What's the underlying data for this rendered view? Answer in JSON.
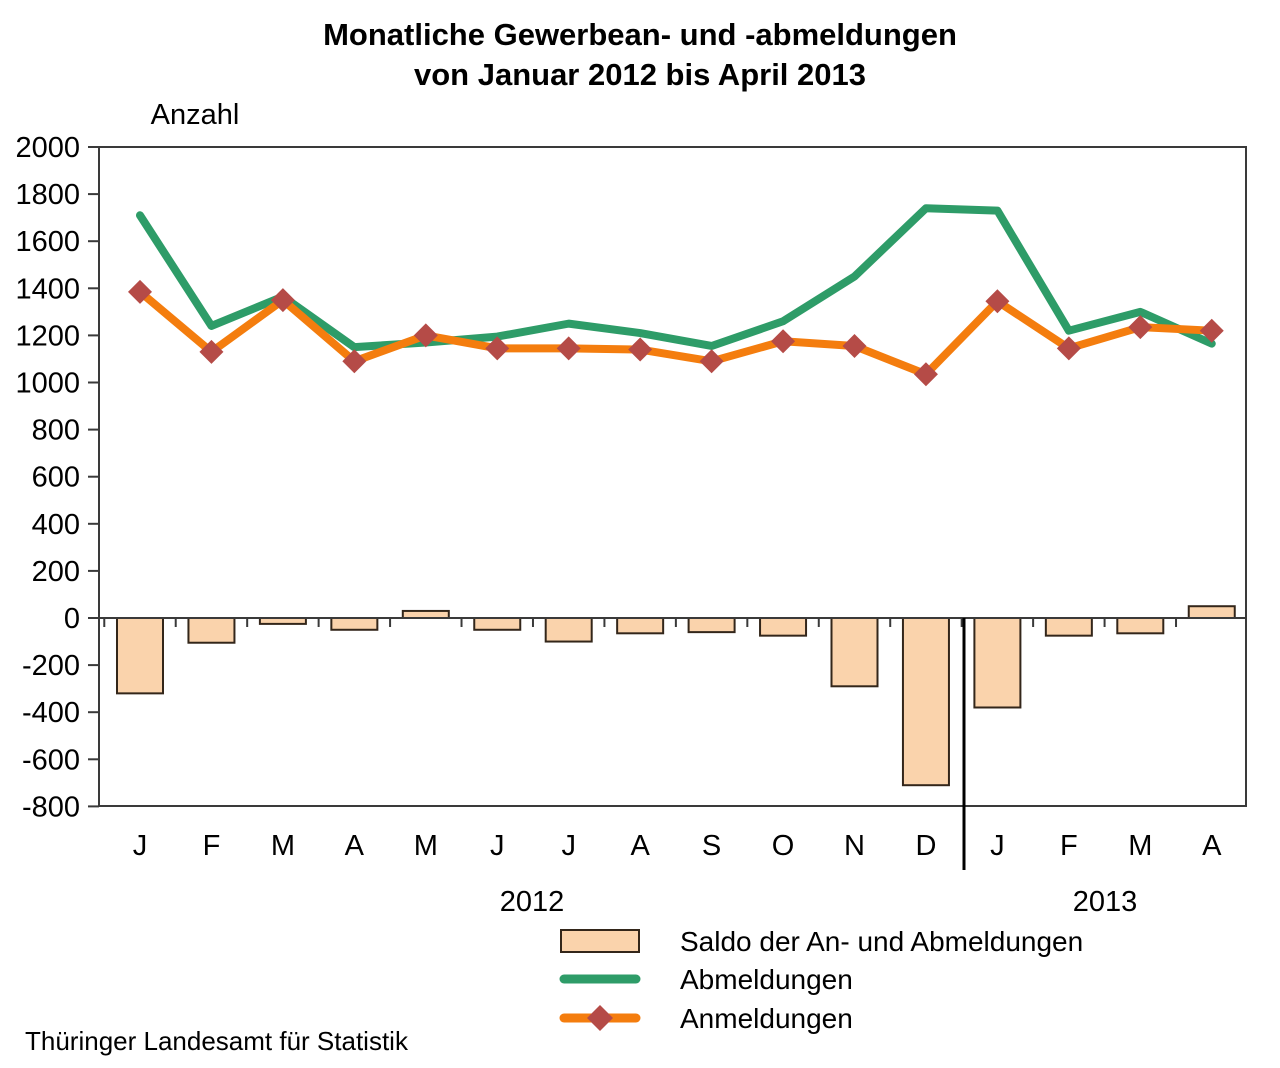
{
  "title": {
    "line1": "Monatliche Gewerbean- und -abmeldungen",
    "line2": "von Januar 2012 bis April 2013"
  },
  "footer": {
    "source": "Thüringer Landesamt für Statistik"
  },
  "colors": {
    "abmeldungen_line": "#2E9C68",
    "anmeldungen_line": "#F47D0E",
    "anmeldungen_marker": "#B54B47",
    "saldo_fill": "#FAD3AC",
    "saldo_border": "#33261A",
    "axis": "#3A3A3A",
    "separator": "#000000",
    "text": "#000000"
  },
  "chart_data": {
    "type": "combo-bar-line",
    "title": "Monatliche Gewerbean- und -abmeldungen von Januar 2012 bis April 2013",
    "xlabel": "",
    "ylabel": "Anzahl",
    "ylim": [
      -800,
      2000
    ],
    "ytick_step": 200,
    "yticks": [
      2000,
      1800,
      1600,
      1400,
      1200,
      1000,
      800,
      600,
      400,
      200,
      0,
      -200,
      -400,
      -600,
      -800
    ],
    "categories": [
      "J",
      "F",
      "M",
      "A",
      "M",
      "J",
      "J",
      "A",
      "S",
      "O",
      "N",
      "D",
      "J",
      "F",
      "M",
      "A"
    ],
    "year_groups": [
      {
        "label": "2012",
        "months": 12
      },
      {
        "label": "2013",
        "months": 4
      }
    ],
    "series": [
      {
        "name": "Saldo der An- und Abmeldungen",
        "type": "bar",
        "values": [
          -320,
          -105,
          -25,
          -50,
          30,
          -50,
          -100,
          -65,
          -60,
          -75,
          -290,
          -710,
          -380,
          -75,
          -65,
          50
        ]
      },
      {
        "name": "Abmeldungen",
        "type": "line",
        "values": [
          1710,
          1240,
          1365,
          1150,
          1170,
          1195,
          1250,
          1210,
          1155,
          1260,
          1450,
          1740,
          1730,
          1220,
          1300,
          1165
        ]
      },
      {
        "name": "Anmeldungen",
        "type": "line",
        "marker": "diamond",
        "values": [
          1385,
          1130,
          1350,
          1090,
          1200,
          1145,
          1145,
          1140,
          1090,
          1175,
          1155,
          1035,
          1345,
          1145,
          1235,
          1220
        ]
      }
    ],
    "grid": false,
    "legend_position": "bottom"
  }
}
